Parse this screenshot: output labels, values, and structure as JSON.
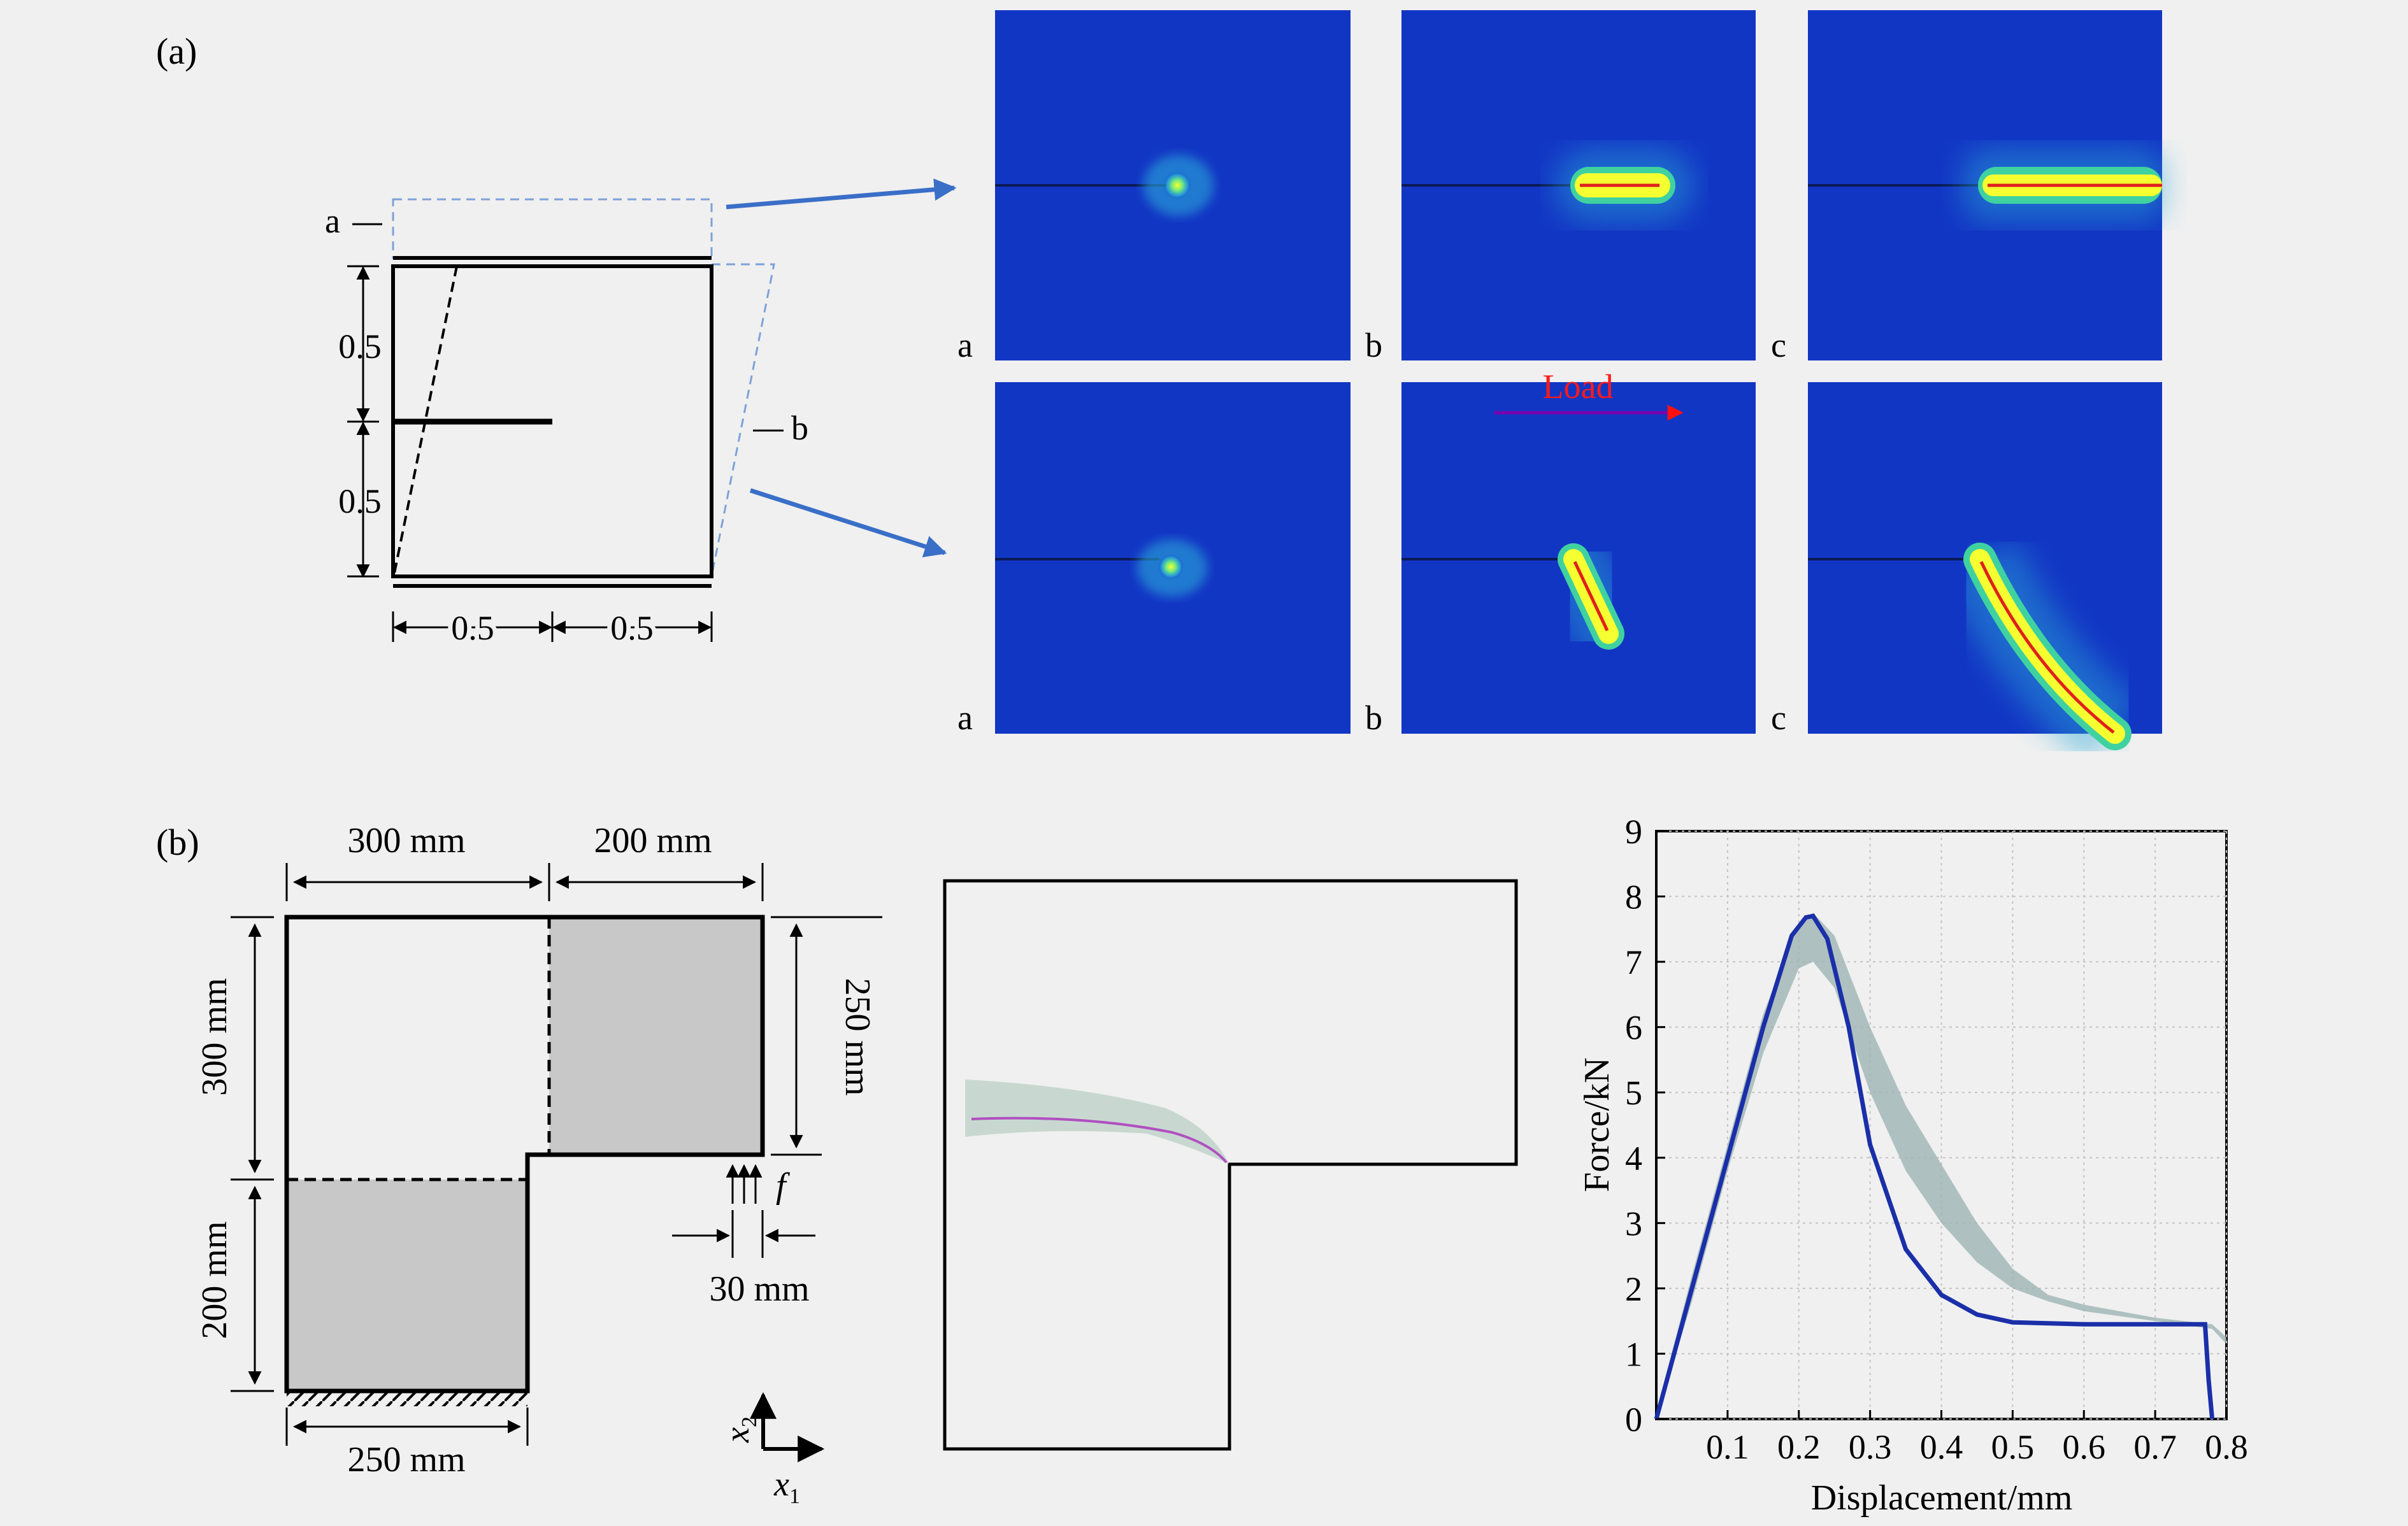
{
  "panel_a": {
    "label": "(a)",
    "schematic": {
      "state_a": "a",
      "state_b": "b",
      "dim_upper": "0.5",
      "dim_lower": "0.5",
      "dim_left": "0.5",
      "dim_right": "0.5"
    },
    "sim_row_top_labels": [
      "a",
      "b",
      "c"
    ],
    "sim_row_bottom_labels": [
      "a",
      "b",
      "c"
    ],
    "load_label": "Load",
    "colors": {
      "field": "#1236c4",
      "crack": "#e0201c",
      "halo": "#3fd2a0",
      "arrow": "#3a6fc8"
    }
  },
  "panel_b": {
    "label": "(b)",
    "schematic": {
      "dim_top_left": "300 mm",
      "dim_top_right": "200 mm",
      "dim_left_upper": "300 mm",
      "dim_left_lower": "200 mm",
      "dim_right": "250 mm",
      "dim_bottom": "250 mm",
      "dim_load_offset": "30 mm",
      "load_symbol": "f",
      "axis_x": "x",
      "axis_x_sub": "1",
      "axis_y": "x",
      "axis_y_sub": "2"
    },
    "chart_data": {
      "type": "line",
      "xlabel": "Displacement/mm",
      "ylabel": "Force/kN",
      "xlim": [
        0,
        0.8
      ],
      "ylim": [
        0,
        9
      ],
      "xticks": [
        "0.1",
        "0.2",
        "0.3",
        "0.4",
        "0.5",
        "0.6",
        "0.7",
        "0.8"
      ],
      "yticks": [
        "0",
        "1",
        "2",
        "3",
        "4",
        "5",
        "6",
        "7",
        "8",
        "9"
      ],
      "grid": true,
      "series": [
        {
          "style": "blue-line",
          "x": [
            0,
            0.05,
            0.1,
            0.15,
            0.19,
            0.21,
            0.22,
            0.24,
            0.27,
            0.3,
            0.35,
            0.4,
            0.45,
            0.5,
            0.6,
            0.7,
            0.77,
            0.775,
            0.78
          ],
          "y": [
            0,
            2.0,
            4.0,
            6.0,
            7.4,
            7.68,
            7.7,
            7.35,
            6.0,
            4.2,
            2.6,
            1.9,
            1.6,
            1.48,
            1.45,
            1.45,
            1.45,
            0.6,
            0
          ]
        },
        {
          "style": "gray-band",
          "x": [
            0,
            0.05,
            0.1,
            0.15,
            0.2,
            0.22,
            0.25,
            0.3,
            0.35,
            0.4,
            0.45,
            0.5,
            0.55,
            0.6,
            0.7,
            0.78,
            0.8
          ],
          "y_upper": [
            0.1,
            2.2,
            4.2,
            6.2,
            7.6,
            7.75,
            7.4,
            6.0,
            4.8,
            3.9,
            3.0,
            2.3,
            1.9,
            1.75,
            1.55,
            1.45,
            1.25
          ],
          "y_lower": [
            0,
            1.8,
            3.8,
            5.6,
            6.9,
            7.0,
            6.6,
            5.0,
            3.8,
            3.0,
            2.4,
            2.0,
            1.8,
            1.65,
            1.5,
            1.38,
            1.15
          ]
        }
      ]
    },
    "colors": {
      "blue_line": "#1a2fa8",
      "band": "#9fb4b4",
      "shade": "#c8c8c8",
      "crack_path": "#b050c0"
    }
  }
}
